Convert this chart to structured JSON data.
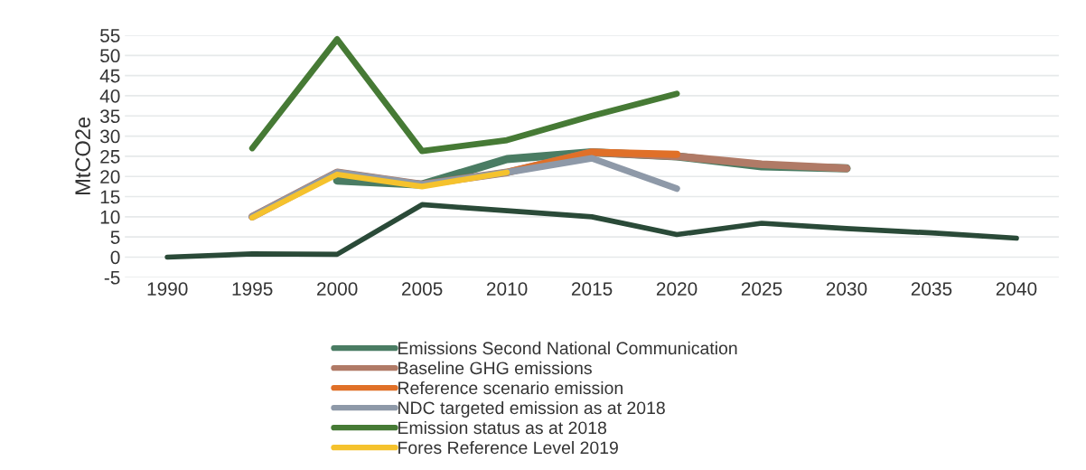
{
  "chart_data": {
    "type": "line",
    "ylabel": "MtCO2e",
    "categories": [
      "1990",
      "1995",
      "2000",
      "2005",
      "2010",
      "2015",
      "2020",
      "2025",
      "2030",
      "2035",
      "2040"
    ],
    "ylim": [
      -5,
      55
    ],
    "yticks": [
      -5,
      0,
      5,
      10,
      15,
      20,
      25,
      30,
      35,
      40,
      45,
      50,
      55
    ],
    "grid": "y",
    "legend": "bottom",
    "marker": "none",
    "line_style": "solid",
    "series": [
      {
        "name": "Emissions Second National Communication",
        "color": "#4a7c63",
        "values": [
          null,
          null,
          19,
          18,
          24.3,
          26,
          25,
          22.5,
          22,
          null,
          null
        ]
      },
      {
        "name": "Baseline GHG emissions",
        "color": "#b07a66",
        "values": [
          null,
          10,
          21,
          18,
          21,
          26,
          25,
          23,
          22,
          null,
          null
        ]
      },
      {
        "name": "Reference scenario emission",
        "color": "#e07028",
        "values": [
          null,
          null,
          null,
          null,
          21,
          26,
          25.5,
          null,
          null,
          null,
          null
        ]
      },
      {
        "name": "NDC targeted emission as at 2018",
        "color": "#8e99a8",
        "values": [
          null,
          10,
          21,
          18,
          21,
          24.5,
          17,
          null,
          null,
          null,
          null
        ]
      },
      {
        "name": "Emission status as at 2018",
        "color": "#467a35",
        "values": [
          null,
          27,
          54,
          26.3,
          29,
          35,
          40.5,
          null,
          null,
          null,
          null
        ]
      },
      {
        "name": "Fores Reference Level 2019",
        "color": "#f5c22d",
        "values": [
          null,
          9.8,
          20.5,
          17.5,
          21,
          null,
          null,
          null,
          null,
          null,
          null
        ]
      },
      {
        "color": "#2a4a38",
        "values": [
          0,
          0.8,
          0.7,
          13,
          11.5,
          10,
          5.6,
          8.4,
          7.1,
          6,
          4.7
        ]
      }
    ]
  }
}
